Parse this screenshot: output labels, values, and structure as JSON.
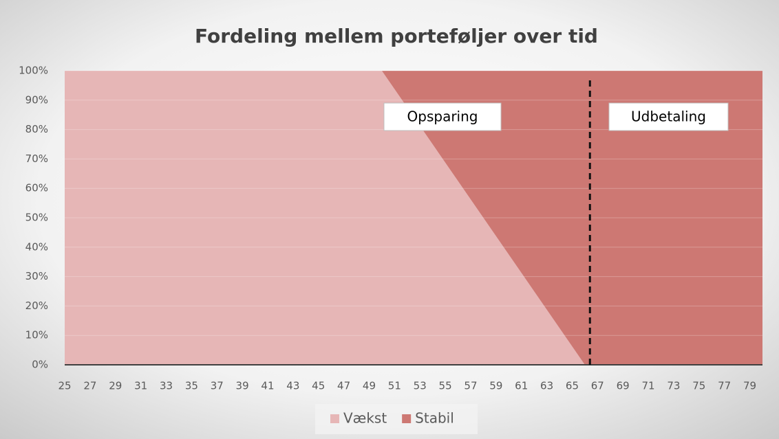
{
  "chart_data": {
    "type": "stacked_area",
    "title": "Fordeling mellem porteføljer over tid",
    "x": [
      25,
      50,
      66,
      80
    ],
    "series": [
      {
        "name": "Vækst",
        "color": "#e6b6b6",
        "values": [
          100,
          100,
          0,
          0
        ]
      },
      {
        "name": "Stabil",
        "color": "#cd7873",
        "values": [
          0,
          0,
          100,
          100
        ]
      }
    ],
    "xlim": [
      25,
      80
    ],
    "xticks": [
      25,
      27,
      29,
      31,
      33,
      35,
      37,
      39,
      41,
      43,
      45,
      47,
      49,
      51,
      53,
      55,
      57,
      59,
      61,
      63,
      65,
      67,
      69,
      71,
      73,
      75,
      77,
      79
    ],
    "ylim": [
      0,
      100
    ],
    "yticks": [
      {
        "value": 0,
        "label": "0%"
      },
      {
        "value": 10,
        "label": "10%"
      },
      {
        "value": 20,
        "label": "20%"
      },
      {
        "value": 30,
        "label": "30%"
      },
      {
        "value": 40,
        "label": "40%"
      },
      {
        "value": 50,
        "label": "50%"
      },
      {
        "value": 60,
        "label": "60%"
      },
      {
        "value": 70,
        "label": "70%"
      },
      {
        "value": 80,
        "label": "80%"
      },
      {
        "value": 90,
        "label": "90%"
      },
      {
        "value": 100,
        "label": "100%"
      }
    ],
    "grid": true,
    "divider_x": 66.4,
    "annotations": [
      {
        "text": "Opsparing"
      },
      {
        "text": "Udbetaling"
      }
    ],
    "legend": "bottom"
  }
}
